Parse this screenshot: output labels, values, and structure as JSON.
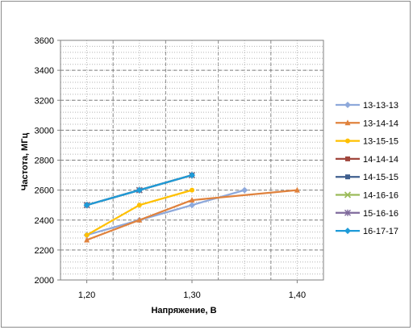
{
  "chart_data": {
    "type": "line",
    "title": "",
    "xlabel": "Напряжение, В",
    "ylabel": "Частота,  МГц",
    "xlim": [
      1.175,
      1.425
    ],
    "ylim": [
      2000,
      3600
    ],
    "x_ticks": [
      {
        "value": 1.2,
        "label": "1,20"
      },
      {
        "value": 1.3,
        "label": "1,30"
      },
      {
        "value": 1.4,
        "label": "1,40"
      }
    ],
    "y_ticks": [
      {
        "value": 2000,
        "label": "2000"
      },
      {
        "value": 2200,
        "label": "2200"
      },
      {
        "value": 2400,
        "label": "2400"
      },
      {
        "value": 2600,
        "label": "2600"
      },
      {
        "value": 2800,
        "label": "2800"
      },
      {
        "value": 3000,
        "label": "3000"
      },
      {
        "value": 3200,
        "label": "3200"
      },
      {
        "value": 3400,
        "label": "3400"
      },
      {
        "value": 3600,
        "label": "3600"
      }
    ],
    "grid": true,
    "legend_position": "right",
    "series": [
      {
        "name": "13-13-13",
        "color": "#8ea9db",
        "marker": "diamond",
        "points": [
          [
            1.2,
            2300
          ],
          [
            1.25,
            2400
          ],
          [
            1.3,
            2500
          ],
          [
            1.35,
            2600
          ]
        ]
      },
      {
        "name": "13-14-14",
        "color": "#e0823d",
        "marker": "triangle",
        "points": [
          [
            1.2,
            2267
          ],
          [
            1.25,
            2400
          ],
          [
            1.3,
            2533
          ],
          [
            1.4,
            2600
          ]
        ]
      },
      {
        "name": "13-15-15",
        "color": "#ffc000",
        "marker": "circle",
        "points": [
          [
            1.2,
            2300
          ],
          [
            1.25,
            2500
          ],
          [
            1.3,
            2600
          ]
        ]
      },
      {
        "name": "14-14-14",
        "color": "#a0463c",
        "marker": "square",
        "points": [
          [
            1.2,
            2500
          ],
          [
            1.25,
            2600
          ],
          [
            1.3,
            2700
          ]
        ]
      },
      {
        "name": "14-15-15",
        "color": "#3f5f8e",
        "marker": "square",
        "points": [
          [
            1.2,
            2500
          ],
          [
            1.25,
            2600
          ],
          [
            1.3,
            2700
          ]
        ]
      },
      {
        "name": "14-16-16",
        "color": "#9bbb59",
        "marker": "x",
        "points": [
          [
            1.2,
            2500
          ],
          [
            1.25,
            2600
          ],
          [
            1.3,
            2700
          ]
        ]
      },
      {
        "name": "15-16-16",
        "color": "#7f6a9c",
        "marker": "star",
        "points": [
          [
            1.2,
            2500
          ],
          [
            1.25,
            2600
          ],
          [
            1.3,
            2700
          ]
        ]
      },
      {
        "name": "16-17-17",
        "color": "#1e9bd8",
        "marker": "diamond",
        "points": [
          [
            1.2,
            2500
          ],
          [
            1.25,
            2600
          ],
          [
            1.3,
            2700
          ]
        ]
      }
    ]
  }
}
